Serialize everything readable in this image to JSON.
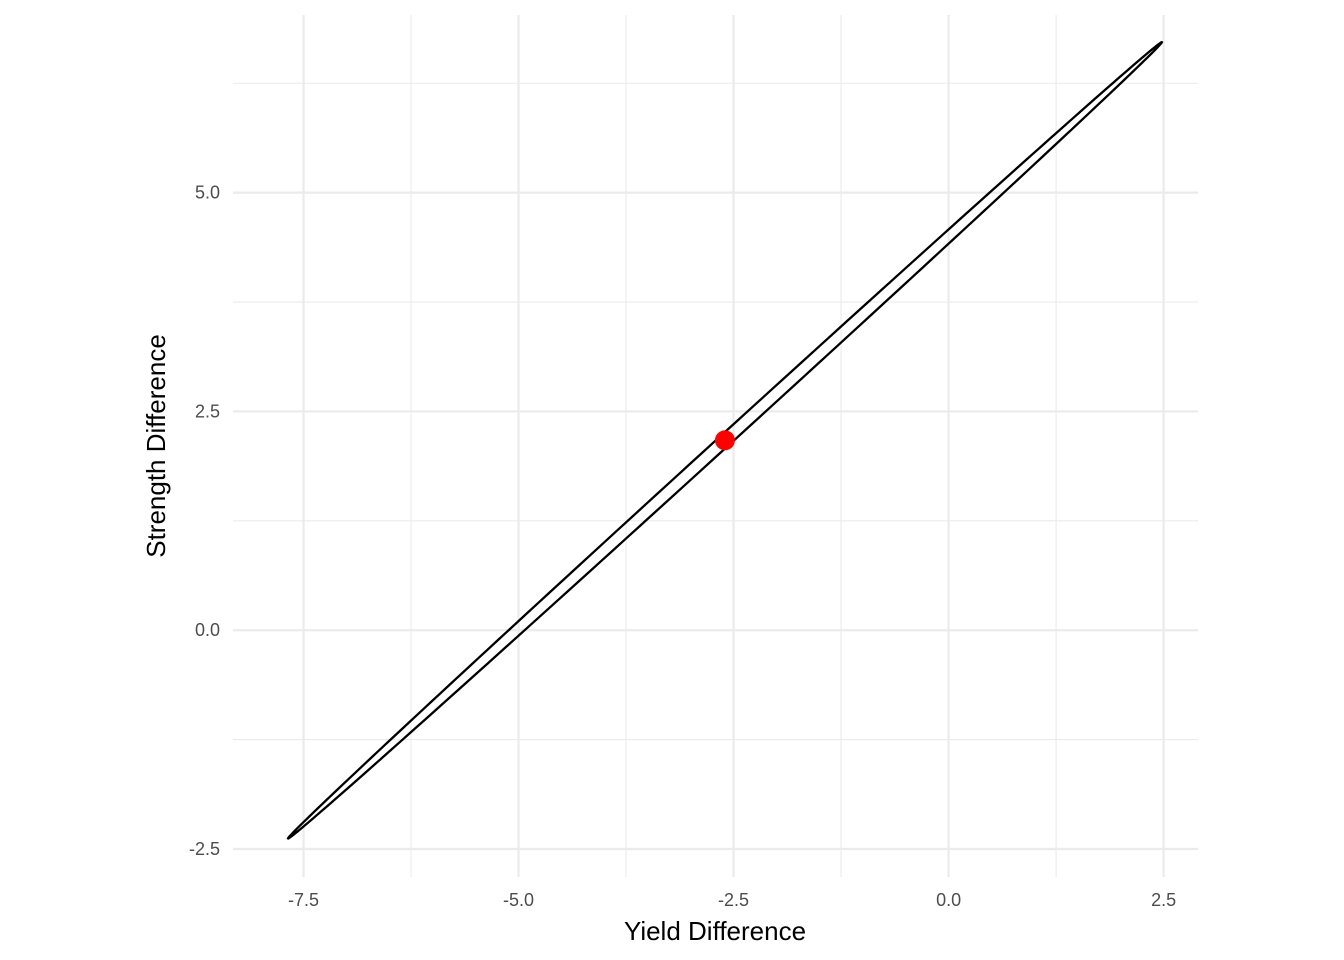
{
  "chart_data": {
    "type": "scatter",
    "title": "",
    "xlabel": "Yield Difference",
    "ylabel": "Strength Difference",
    "xlim": [
      -8.32,
      2.9
    ],
    "ylim": [
      -2.82,
      7.03
    ],
    "x_ticks": [
      -7.5,
      -5.0,
      -2.5,
      0.0,
      2.5
    ],
    "x_tick_labels": [
      "-7.5",
      "-5.0",
      "-2.5",
      "0.0",
      "2.5"
    ],
    "y_ticks": [
      -2.5,
      0.0,
      2.5,
      5.0
    ],
    "y_tick_labels": [
      "-2.5",
      "0.0",
      "2.5",
      "5.0"
    ],
    "x_minor": [
      -6.25,
      -3.75,
      -1.25,
      1.25
    ],
    "y_minor": [
      -1.25,
      1.25,
      3.75,
      6.25
    ],
    "grid": true,
    "series": [
      {
        "kind": "ellipse",
        "color": "#000000",
        "center": [
          -2.6,
          2.17
        ],
        "extremes": {
          "x_min": [
            -7.67,
            -1.5
          ],
          "x_max": [
            2.48,
            5.85
          ],
          "y_min": [
            -6.77,
            -2.37
          ],
          "y_max": [
            1.57,
            6.72
          ]
        }
      },
      {
        "kind": "point",
        "color": "#ff0000",
        "x": -2.6,
        "y": 2.17
      }
    ]
  }
}
